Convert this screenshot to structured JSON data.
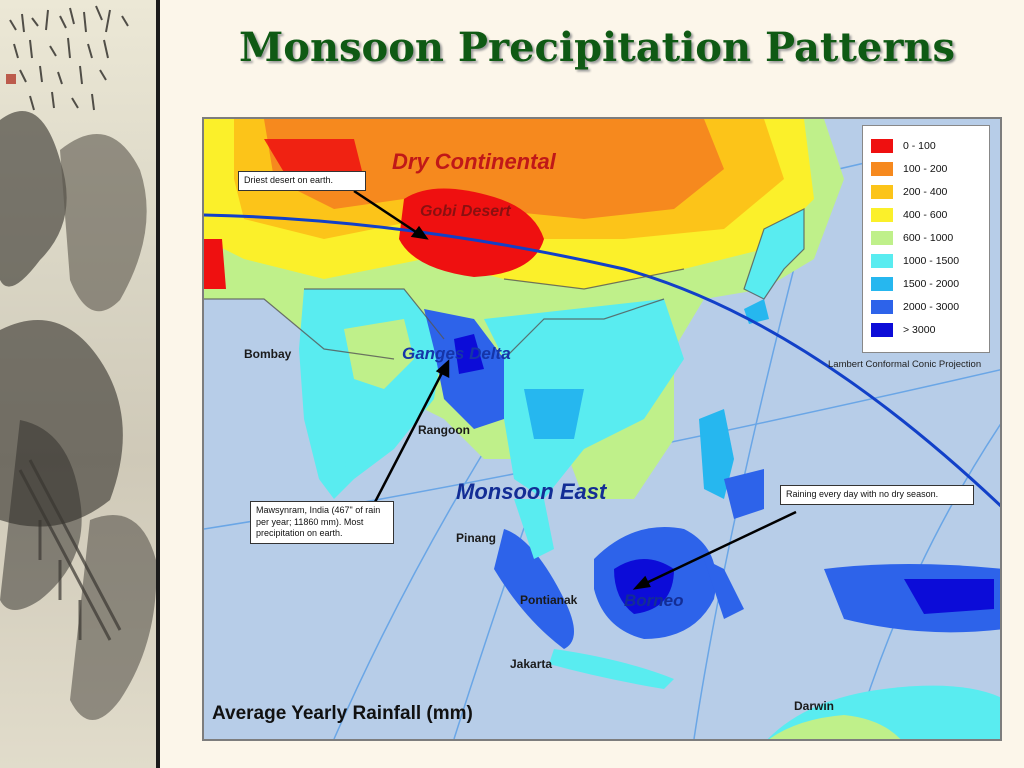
{
  "slide": {
    "title": "Monsoon Precipitation Patterns"
  },
  "map": {
    "caption": "Average Yearly Rainfall (mm)",
    "projection": "Lambert Conformal Conic Projection",
    "region_labels": {
      "dry_continental": "Dry Continental",
      "gobi": "Gobi Desert",
      "ganges": "Ganges Delta",
      "monsoon_east": "Monsoon East",
      "borneo": "Borneo"
    },
    "cities": {
      "bombay": "Bombay",
      "rangoon": "Rangoon",
      "pinang": "Pinang",
      "pontianak": "Pontianak",
      "jakarta": "Jakarta",
      "darwin": "Darwin"
    },
    "callouts": {
      "driest": "Driest desert on earth.",
      "mawsynram": "Mawsynram, India (467\" of rain per year; 11860 mm). Most precipitation on earth.",
      "raining": "Raining every day with no dry season."
    },
    "legend": [
      {
        "label": "0 - 100",
        "color": "#ef1010"
      },
      {
        "label": "100 - 200",
        "color": "#f6891e"
      },
      {
        "label": "200 - 400",
        "color": "#fcc419"
      },
      {
        "label": "400 - 600",
        "color": "#fbf02a"
      },
      {
        "label": "600 - 1000",
        "color": "#bff08a"
      },
      {
        "label": "1000 - 1500",
        "color": "#59ecf0"
      },
      {
        "label": "1500 - 2000",
        "color": "#26b7ef"
      },
      {
        "label": "2000 - 3000",
        "color": "#2d63ea"
      },
      {
        "label": "> 3000",
        "color": "#0c0cd8"
      }
    ]
  }
}
